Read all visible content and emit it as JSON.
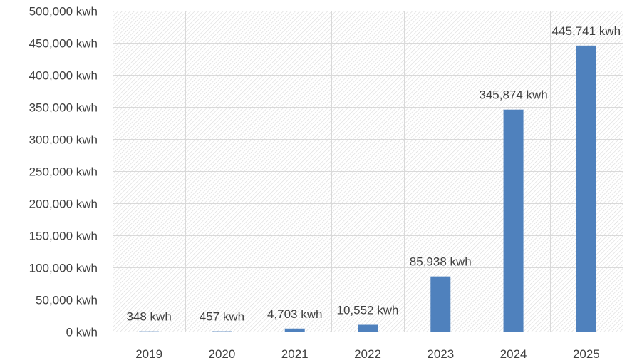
{
  "chart_data": {
    "type": "bar",
    "categories": [
      "2019",
      "2020",
      "2021",
      "2022",
      "2023",
      "2024",
      "2025"
    ],
    "values": [
      348,
      457,
      4703,
      10552,
      85938,
      345874,
      445741
    ],
    "data_labels": [
      "348 kwh",
      "457 kwh",
      "4,703 kwh",
      "10,552 kwh",
      "85,938 kwh",
      "345,874 kwh",
      "445,741 kwh"
    ],
    "y_ticks": [
      0,
      50000,
      100000,
      150000,
      200000,
      250000,
      300000,
      350000,
      400000,
      450000,
      500000
    ],
    "y_tick_labels": [
      "0 kwh",
      "50,000 kwh",
      "100,000 kwh",
      "150,000 kwh",
      "200,000 kwh",
      "250,000 kwh",
      "300,000 kwh",
      "350,000 kwh",
      "400,000 kwh",
      "450,000 kwh",
      "500,000 kwh"
    ],
    "ylim": [
      0,
      500000
    ],
    "grid": true,
    "bar_color": "#4f81bd",
    "title": "",
    "xlabel": "",
    "ylabel": ""
  }
}
